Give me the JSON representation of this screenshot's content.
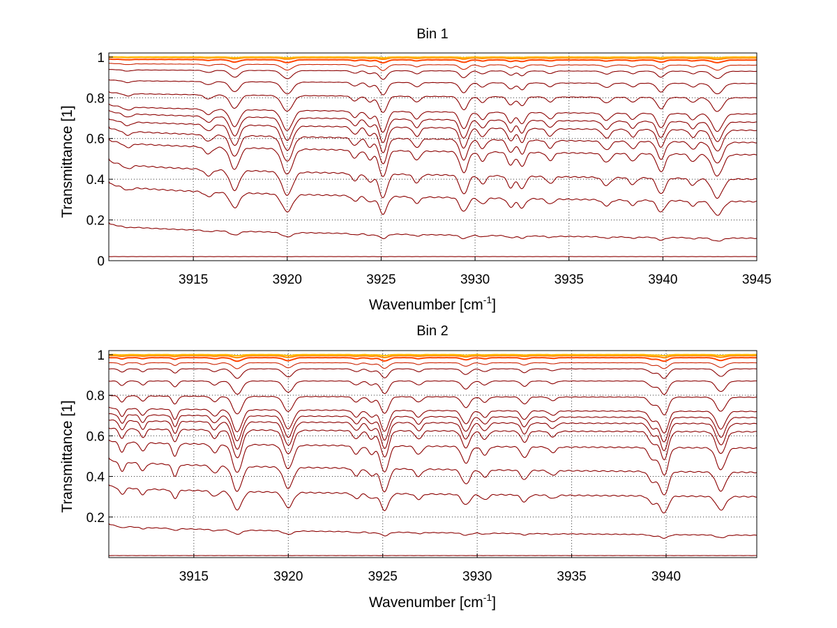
{
  "chart_data": [
    {
      "type": "line",
      "title": "Bin 1",
      "xlabel": "Wavenumber [cm",
      "xlabel_sup": "-1",
      "xlabel_close": "]",
      "ylabel": "Transmittance [1]",
      "xlim": [
        3910.5,
        3945
      ],
      "ylim": [
        0,
        1.02
      ],
      "xticks": [
        "3915",
        "3920",
        "3925",
        "3930",
        "3935",
        "3940",
        "3945"
      ],
      "yticks": [
        "0",
        "0.2",
        "0.4",
        "0.6",
        "0.8",
        "1"
      ],
      "grid": true,
      "series_colors": [
        "#8b0000",
        "#cc2200",
        "#ff4400",
        "#ff8800",
        "#ffbb00"
      ],
      "curves": [
        {
          "start": 0.02,
          "end": 0.02,
          "depth": 0.03
        },
        {
          "start": 0.19,
          "end": 0.11,
          "depth": 0.33
        },
        {
          "start": 0.39,
          "end": 0.29,
          "depth": 0.55
        },
        {
          "start": 0.5,
          "end": 0.4,
          "depth": 0.55
        },
        {
          "start": 0.6,
          "end": 0.52,
          "depth": 0.48
        },
        {
          "start": 0.66,
          "end": 0.58,
          "depth": 0.42
        },
        {
          "start": 0.7,
          "end": 0.64,
          "depth": 0.38
        },
        {
          "start": 0.74,
          "end": 0.68,
          "depth": 0.33
        },
        {
          "start": 0.77,
          "end": 0.72,
          "depth": 0.28
        },
        {
          "start": 0.83,
          "end": 0.8,
          "depth": 0.2
        },
        {
          "start": 0.89,
          "end": 0.87,
          "depth": 0.14
        },
        {
          "start": 0.94,
          "end": 0.93,
          "depth": 0.09
        },
        {
          "start": 0.97,
          "end": 0.96,
          "depth": 0.06
        },
        {
          "start": 0.99,
          "end": 0.985,
          "depth": 0.03
        },
        {
          "start": 1.0,
          "end": 0.995,
          "depth": 0.015
        },
        {
          "start": 1.0,
          "end": 1.0,
          "depth": 0.008
        }
      ],
      "lines": [
        {
          "x": 3917.2,
          "w": 0.35,
          "s": 0.8
        },
        {
          "x": 3920.0,
          "w": 0.4,
          "s": 0.95
        },
        {
          "x": 3923.6,
          "w": 0.25,
          "s": 0.3
        },
        {
          "x": 3924.4,
          "w": 0.25,
          "s": 0.35
        },
        {
          "x": 3925.1,
          "w": 0.3,
          "s": 1.0
        },
        {
          "x": 3926.9,
          "w": 0.25,
          "s": 0.35
        },
        {
          "x": 3929.4,
          "w": 0.3,
          "s": 0.8
        },
        {
          "x": 3930.4,
          "w": 0.25,
          "s": 0.35
        },
        {
          "x": 3931.9,
          "w": 0.25,
          "s": 0.5
        },
        {
          "x": 3932.5,
          "w": 0.25,
          "s": 0.55
        },
        {
          "x": 3934.0,
          "w": 0.25,
          "s": 0.3
        },
        {
          "x": 3937.0,
          "w": 0.3,
          "s": 0.35
        },
        {
          "x": 3938.4,
          "w": 0.25,
          "s": 0.3
        },
        {
          "x": 3939.9,
          "w": 0.3,
          "s": 0.7
        },
        {
          "x": 3941.6,
          "w": 0.25,
          "s": 0.3
        },
        {
          "x": 3942.9,
          "w": 0.4,
          "s": 0.85
        },
        {
          "x": 3915.8,
          "w": 0.3,
          "s": 0.25
        },
        {
          "x": 3911.5,
          "w": 0.3,
          "s": 0.15
        }
      ]
    },
    {
      "type": "line",
      "title": "Bin 2",
      "xlabel": "Wavenumber [cm",
      "xlabel_sup": "-1",
      "xlabel_close": "]",
      "ylabel": "Transmittance [1]",
      "xlim": [
        3910.5,
        3944.8
      ],
      "ylim": [
        0,
        1.02
      ],
      "xticks": [
        "3915",
        "3920",
        "3925",
        "3930",
        "3935",
        "3940"
      ],
      "yticks": [
        "0.2",
        "0.4",
        "0.6",
        "0.8",
        "1"
      ],
      "grid": true,
      "series_colors": [
        "#8b0000",
        "#cc2200",
        "#ff4400",
        "#ff8800",
        "#ffbb00"
      ],
      "curves": [
        {
          "start": 0.01,
          "end": 0.01,
          "depth": 0.02
        },
        {
          "start": 0.17,
          "end": 0.11,
          "depth": 0.3
        },
        {
          "start": 0.36,
          "end": 0.3,
          "depth": 0.55
        },
        {
          "start": 0.49,
          "end": 0.42,
          "depth": 0.55
        },
        {
          "start": 0.58,
          "end": 0.54,
          "depth": 0.5
        },
        {
          "start": 0.64,
          "end": 0.62,
          "depth": 0.44
        },
        {
          "start": 0.68,
          "end": 0.66,
          "depth": 0.4
        },
        {
          "start": 0.71,
          "end": 0.69,
          "depth": 0.35
        },
        {
          "start": 0.74,
          "end": 0.72,
          "depth": 0.3
        },
        {
          "start": 0.8,
          "end": 0.79,
          "depth": 0.22
        },
        {
          "start": 0.87,
          "end": 0.87,
          "depth": 0.15
        },
        {
          "start": 0.93,
          "end": 0.93,
          "depth": 0.1
        },
        {
          "start": 0.96,
          "end": 0.96,
          "depth": 0.06
        },
        {
          "start": 0.985,
          "end": 0.985,
          "depth": 0.035
        },
        {
          "start": 0.995,
          "end": 0.995,
          "depth": 0.02
        },
        {
          "start": 1.0,
          "end": 1.0,
          "depth": 0.01
        }
      ],
      "lines": [
        {
          "x": 3911.2,
          "w": 0.2,
          "s": 0.35
        },
        {
          "x": 3912.3,
          "w": 0.2,
          "s": 0.3
        },
        {
          "x": 3914.0,
          "w": 0.2,
          "s": 0.45
        },
        {
          "x": 3916.1,
          "w": 0.25,
          "s": 0.3
        },
        {
          "x": 3917.3,
          "w": 0.35,
          "s": 1.0
        },
        {
          "x": 3920.0,
          "w": 0.35,
          "s": 0.85
        },
        {
          "x": 3923.6,
          "w": 0.25,
          "s": 0.3
        },
        {
          "x": 3924.4,
          "w": 0.25,
          "s": 0.3
        },
        {
          "x": 3925.1,
          "w": 0.3,
          "s": 0.95
        },
        {
          "x": 3926.9,
          "w": 0.25,
          "s": 0.3
        },
        {
          "x": 3929.4,
          "w": 0.3,
          "s": 0.6
        },
        {
          "x": 3930.4,
          "w": 0.25,
          "s": 0.3
        },
        {
          "x": 3932.5,
          "w": 0.25,
          "s": 0.4
        },
        {
          "x": 3934.0,
          "w": 0.25,
          "s": 0.2
        },
        {
          "x": 3939.3,
          "w": 0.3,
          "s": 0.45
        },
        {
          "x": 3939.9,
          "w": 0.3,
          "s": 1.0
        },
        {
          "x": 3942.9,
          "w": 0.35,
          "s": 0.8
        }
      ]
    }
  ]
}
